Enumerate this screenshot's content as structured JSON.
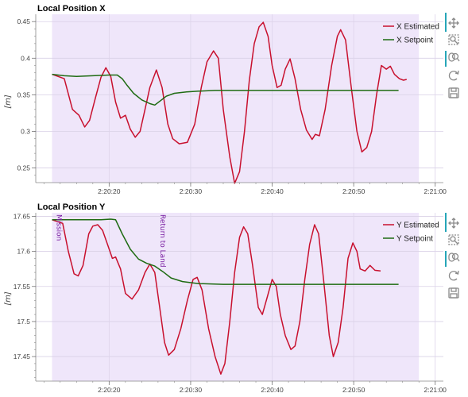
{
  "colors": {
    "estimated": "#c8102e",
    "setpoint": "#1e6b12",
    "mode_band": "#efe6fa",
    "annotation": "#7a1fa2",
    "toolbar_accent": "#26a6b8",
    "grid": "#e6e6e6"
  },
  "toolbar": {
    "icons": [
      "pan-icon",
      "box-zoom-icon",
      "wheel-zoom-icon",
      "reset-icon",
      "save-icon"
    ]
  },
  "chart_data": [
    {
      "type": "line",
      "title": "Local Position X",
      "ylabel": "[m]",
      "xlabel": "",
      "xlim": [
        "2:20:11",
        "2:21:01"
      ],
      "ylim": [
        0.23,
        0.46
      ],
      "x_ticks": [
        "2:20:20",
        "2:20:30",
        "2:20:40",
        "2:20:50",
        "2:21:00"
      ],
      "y_ticks": [
        "0.25",
        "0.3",
        "0.35",
        "0.4",
        "0.45"
      ],
      "grid": true,
      "legend_position": "top-right",
      "shaded_band": [
        "2:20:13",
        "2:20:58"
      ],
      "series": [
        {
          "name": "X Estimated",
          "color": "#c8102e",
          "points": [
            [
              "2:20:13.0",
              0.378
            ],
            [
              "2:20:14.5",
              0.372
            ],
            [
              "2:20:15.5",
              0.33
            ],
            [
              "2:20:16.3",
              0.322
            ],
            [
              "2:20:17.0",
              0.306
            ],
            [
              "2:20:17.6",
              0.315
            ],
            [
              "2:20:18.3",
              0.345
            ],
            [
              "2:20:19.0",
              0.374
            ],
            [
              "2:20:19.6",
              0.387
            ],
            [
              "2:20:20.2",
              0.375
            ],
            [
              "2:20:20.8",
              0.34
            ],
            [
              "2:20:21.4",
              0.318
            ],
            [
              "2:20:22.0",
              0.322
            ],
            [
              "2:20:22.6",
              0.303
            ],
            [
              "2:20:23.2",
              0.292
            ],
            [
              "2:20:23.8",
              0.3
            ],
            [
              "2:20:24.4",
              0.33
            ],
            [
              "2:20:25.0",
              0.36
            ],
            [
              "2:20:25.8",
              0.384
            ],
            [
              "2:20:26.5",
              0.36
            ],
            [
              "2:20:27.2",
              0.31
            ],
            [
              "2:20:27.8",
              0.29
            ],
            [
              "2:20:28.6",
              0.283
            ],
            [
              "2:20:29.6",
              0.285
            ],
            [
              "2:20:30.5",
              0.31
            ],
            [
              "2:20:31.3",
              0.36
            ],
            [
              "2:20:32.0",
              0.395
            ],
            [
              "2:20:32.8",
              0.41
            ],
            [
              "2:20:33.4",
              0.4
            ],
            [
              "2:20:34.0",
              0.33
            ],
            [
              "2:20:34.8",
              0.265
            ],
            [
              "2:20:35.4",
              0.229
            ],
            [
              "2:20:36.0",
              0.245
            ],
            [
              "2:20:36.6",
              0.3
            ],
            [
              "2:20:37.2",
              0.37
            ],
            [
              "2:20:37.8",
              0.42
            ],
            [
              "2:20:38.4",
              0.443
            ],
            [
              "2:20:38.9",
              0.449
            ],
            [
              "2:20:39.5",
              0.43
            ],
            [
              "2:20:40.0",
              0.39
            ],
            [
              "2:20:40.6",
              0.36
            ],
            [
              "2:20:41.1",
              0.363
            ],
            [
              "2:20:41.6",
              0.385
            ],
            [
              "2:20:42.2",
              0.399
            ],
            [
              "2:20:42.8",
              0.372
            ],
            [
              "2:20:43.5",
              0.33
            ],
            [
              "2:20:44.2",
              0.302
            ],
            [
              "2:20:44.9",
              0.289
            ],
            [
              "2:20:45.3",
              0.296
            ],
            [
              "2:20:45.8",
              0.294
            ],
            [
              "2:20:46.5",
              0.33
            ],
            [
              "2:20:47.3",
              0.39
            ],
            [
              "2:20:48.0",
              0.43
            ],
            [
              "2:20:48.4",
              0.439
            ],
            [
              "2:20:49.0",
              0.425
            ],
            [
              "2:20:49.7",
              0.36
            ],
            [
              "2:20:50.4",
              0.3
            ],
            [
              "2:20:51.0",
              0.272
            ],
            [
              "2:20:51.6",
              0.278
            ],
            [
              "2:20:52.2",
              0.3
            ],
            [
              "2:20:52.8",
              0.35
            ],
            [
              "2:20:53.4",
              0.39
            ],
            [
              "2:20:54.0",
              0.385
            ],
            [
              "2:20:54.5",
              0.389
            ],
            [
              "2:20:55.0",
              0.378
            ],
            [
              "2:20:55.6",
              0.372
            ],
            [
              "2:20:56.1",
              0.37
            ],
            [
              "2:20:56.5",
              0.371
            ]
          ]
        },
        {
          "name": "X Setpoint",
          "color": "#1e6b12",
          "points": [
            [
              "2:20:13.0",
              0.378
            ],
            [
              "2:20:14.5",
              0.376
            ],
            [
              "2:20:16.0",
              0.375
            ],
            [
              "2:20:18.0",
              0.376
            ],
            [
              "2:20:20.0",
              0.377
            ],
            [
              "2:20:21.0",
              0.377
            ],
            [
              "2:20:21.6",
              0.372
            ],
            [
              "2:20:22.2",
              0.363
            ],
            [
              "2:20:23.0",
              0.352
            ],
            [
              "2:20:24.0",
              0.343
            ],
            [
              "2:20:25.0",
              0.338
            ],
            [
              "2:20:25.6",
              0.336
            ],
            [
              "2:20:26.3",
              0.342
            ],
            [
              "2:20:27.0",
              0.348
            ],
            [
              "2:20:28.0",
              0.352
            ],
            [
              "2:20:29.5",
              0.354
            ],
            [
              "2:20:31.0",
              0.355
            ],
            [
              "2:20:33.0",
              0.356
            ],
            [
              "2:20:40.0",
              0.356
            ],
            [
              "2:20:50.0",
              0.356
            ],
            [
              "2:20:55.5",
              0.356
            ]
          ]
        }
      ]
    },
    {
      "type": "line",
      "title": "Local Position Y",
      "ylabel": "[m]",
      "xlabel": "",
      "xlim": [
        "2:20:11",
        "2:21:01"
      ],
      "ylim": [
        17.415,
        17.655
      ],
      "x_ticks": [
        "2:20:20",
        "2:20:30",
        "2:20:40",
        "2:20:50",
        "2:21:00"
      ],
      "y_ticks": [
        "17.45",
        "17.5",
        "17.55",
        "17.6",
        "17.65"
      ],
      "grid": true,
      "legend_position": "top-right",
      "shaded_band": [
        "2:20:13",
        "2:20:58"
      ],
      "annotations": [
        {
          "label": "Mission",
          "x": "2:20:13.3"
        },
        {
          "label": "Return to Land",
          "x": "2:20:26.0"
        }
      ],
      "series": [
        {
          "name": "Y Estimated",
          "color": "#c8102e",
          "points": [
            [
              "2:20:13.0",
              17.645
            ],
            [
              "2:20:14.3",
              17.64
            ],
            [
              "2:20:15.0",
              17.6
            ],
            [
              "2:20:15.7",
              17.568
            ],
            [
              "2:20:16.2",
              17.565
            ],
            [
              "2:20:16.8",
              17.58
            ],
            [
              "2:20:17.5",
              17.625
            ],
            [
              "2:20:18.0",
              17.636
            ],
            [
              "2:20:18.6",
              17.638
            ],
            [
              "2:20:19.2",
              17.63
            ],
            [
              "2:20:19.8",
              17.61
            ],
            [
              "2:20:20.4",
              17.59
            ],
            [
              "2:20:20.8",
              17.592
            ],
            [
              "2:20:21.4",
              17.575
            ],
            [
              "2:20:22.0",
              17.54
            ],
            [
              "2:20:22.8",
              17.532
            ],
            [
              "2:20:23.6",
              17.545
            ],
            [
              "2:20:24.4",
              17.57
            ],
            [
              "2:20:25.0",
              17.582
            ],
            [
              "2:20:25.6",
              17.57
            ],
            [
              "2:20:26.2",
              17.52
            ],
            [
              "2:20:26.8",
              17.47
            ],
            [
              "2:20:27.3",
              17.452
            ],
            [
              "2:20:28.0",
              17.46
            ],
            [
              "2:20:28.8",
              17.49
            ],
            [
              "2:20:29.6",
              17.53
            ],
            [
              "2:20:30.3",
              17.56
            ],
            [
              "2:20:30.8",
              17.563
            ],
            [
              "2:20:31.4",
              17.545
            ],
            [
              "2:20:32.2",
              17.49
            ],
            [
              "2:20:33.0",
              17.45
            ],
            [
              "2:20:33.7",
              17.425
            ],
            [
              "2:20:34.2",
              17.44
            ],
            [
              "2:20:34.8",
              17.5
            ],
            [
              "2:20:35.4",
              17.57
            ],
            [
              "2:20:36.0",
              17.62
            ],
            [
              "2:20:36.5",
              17.635
            ],
            [
              "2:20:37.0",
              17.625
            ],
            [
              "2:20:37.6",
              17.58
            ],
            [
              "2:20:38.3",
              17.52
            ],
            [
              "2:20:38.8",
              17.51
            ],
            [
              "2:20:39.4",
              17.535
            ],
            [
              "2:20:40.0",
              17.56
            ],
            [
              "2:20:40.5",
              17.55
            ],
            [
              "2:20:41.0",
              17.51
            ],
            [
              "2:20:41.6",
              17.48
            ],
            [
              "2:20:42.3",
              17.46
            ],
            [
              "2:20:42.8",
              17.465
            ],
            [
              "2:20:43.4",
              17.5
            ],
            [
              "2:20:44.0",
              17.56
            ],
            [
              "2:20:44.6",
              17.61
            ],
            [
              "2:20:45.2",
              17.638
            ],
            [
              "2:20:45.7",
              17.625
            ],
            [
              "2:20:46.3",
              17.56
            ],
            [
              "2:20:47.0",
              17.48
            ],
            [
              "2:20:47.5",
              17.45
            ],
            [
              "2:20:48.1",
              17.47
            ],
            [
              "2:20:48.7",
              17.52
            ],
            [
              "2:20:49.3",
              17.59
            ],
            [
              "2:20:49.9",
              17.612
            ],
            [
              "2:20:50.4",
              17.6
            ],
            [
              "2:20:50.8",
              17.575
            ],
            [
              "2:20:51.4",
              17.572
            ],
            [
              "2:20:52.0",
              17.58
            ],
            [
              "2:20:52.6",
              17.573
            ],
            [
              "2:20:53.3",
              17.572
            ]
          ]
        },
        {
          "name": "Y Setpoint",
          "color": "#1e6b12",
          "points": [
            [
              "2:20:13.0",
              17.645
            ],
            [
              "2:20:16.0",
              17.645
            ],
            [
              "2:20:19.0",
              17.645
            ],
            [
              "2:20:20.2",
              17.646
            ],
            [
              "2:20:20.8",
              17.645
            ],
            [
              "2:20:21.6",
              17.625
            ],
            [
              "2:20:22.6",
              17.603
            ],
            [
              "2:20:23.6",
              17.589
            ],
            [
              "2:20:24.6",
              17.583
            ],
            [
              "2:20:25.6",
              17.579
            ],
            [
              "2:20:26.6",
              17.571
            ],
            [
              "2:20:27.6",
              17.562
            ],
            [
              "2:20:29.0",
              17.557
            ],
            [
              "2:20:31.0",
              17.554
            ],
            [
              "2:20:34.0",
              17.553
            ],
            [
              "2:20:40.0",
              17.553
            ],
            [
              "2:20:50.0",
              17.553
            ],
            [
              "2:20:55.5",
              17.553
            ]
          ]
        }
      ]
    }
  ]
}
